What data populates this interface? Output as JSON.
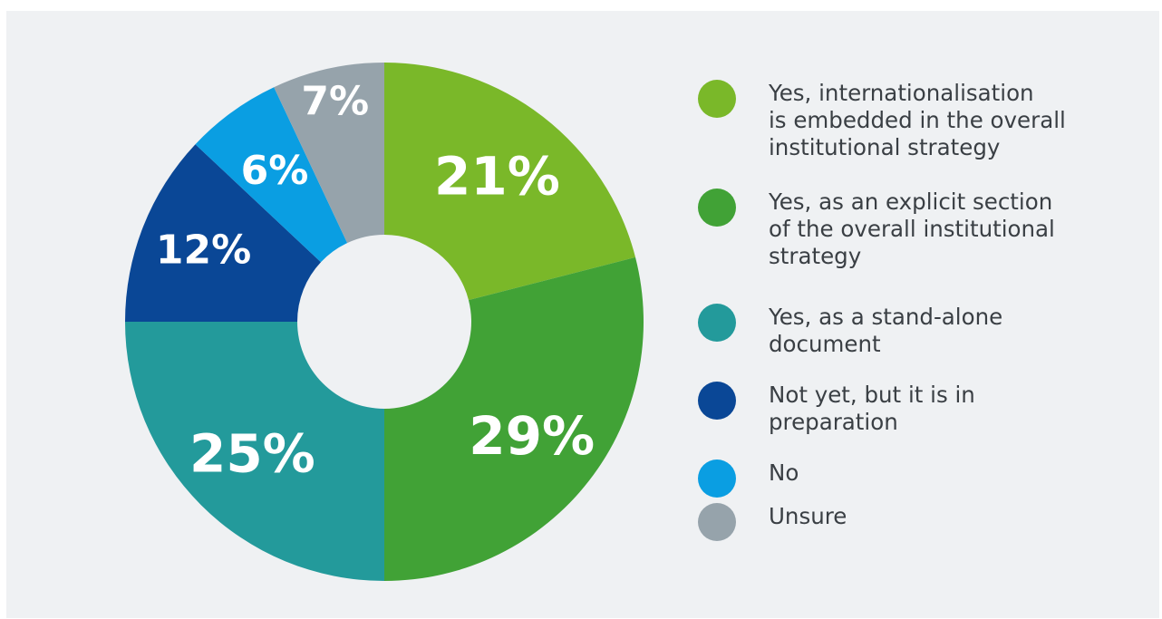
{
  "chart_data": {
    "type": "pie",
    "title": "",
    "categories": [
      "Yes, internationalisation\nis embedded in the overall\ninstitutional strategy",
      "Yes, as an explicit section\nof the overall institutional\nstrategy",
      "Yes, as a stand-alone\ndocument",
      "Not yet, but it is in\npreparation",
      "No",
      "Unsure"
    ],
    "values": [
      21,
      29,
      25,
      12,
      6,
      7
    ],
    "value_labels": [
      "21%",
      "29%",
      "25%",
      "12%",
      "6%",
      "7%"
    ],
    "colors": [
      "#7ab829",
      "#41a236",
      "#239a9b",
      "#0a4796",
      "#0a9ee2",
      "#96a3ab"
    ],
    "start_angle_deg": 0,
    "direction": "clockwise",
    "legend_position": "right"
  }
}
